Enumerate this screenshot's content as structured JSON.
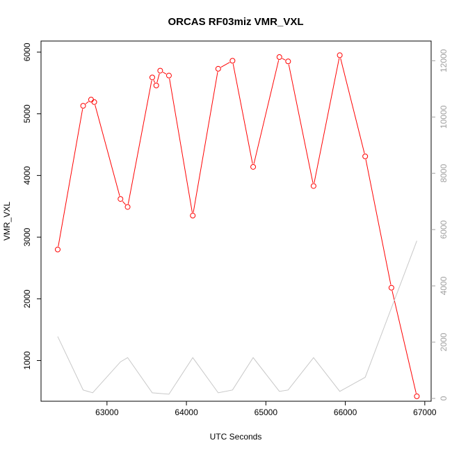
{
  "chart_data": {
    "type": "line",
    "title": "ORCAS RF03miz VMR_VXL",
    "xlabel": "UTC Seconds",
    "ylabel": "VMR_VXL",
    "xlim": [
      62170,
      67080
    ],
    "ylim": [
      340,
      6180
    ],
    "y2lim": [
      -100,
      12700
    ],
    "x_ticks": [
      63000,
      64000,
      65000,
      66000,
      67000
    ],
    "y_ticks": [
      1000,
      2000,
      3000,
      4000,
      5000,
      6000
    ],
    "y2_ticks": [
      0,
      2000,
      4000,
      6000,
      8000,
      10000,
      12000
    ],
    "series": [
      {
        "role": "primary",
        "color": "#ff0000",
        "markers": "open-circle",
        "x": [
          62380,
          62700,
          62800,
          62840,
          63170,
          63260,
          63570,
          63620,
          63670,
          63780,
          64080,
          64400,
          64580,
          64840,
          65170,
          65280,
          65600,
          65930,
          66250,
          66580,
          66900
        ],
        "y": [
          2800,
          5130,
          5230,
          5190,
          3620,
          3490,
          5590,
          5460,
          5700,
          5620,
          3350,
          5730,
          5860,
          4140,
          5920,
          5850,
          3830,
          5950,
          4310,
          2180,
          420
        ]
      },
      {
        "role": "secondary-axis",
        "color": "#c8c8c8",
        "markers": "none",
        "x": [
          62380,
          62700,
          62820,
          63170,
          63260,
          63570,
          63780,
          64080,
          64400,
          64580,
          64840,
          65170,
          65280,
          65600,
          65930,
          66250,
          66900
        ],
        "y": [
          2200,
          300,
          200,
          1300,
          1450,
          200,
          150,
          1450,
          200,
          300,
          1450,
          250,
          300,
          1450,
          250,
          750,
          5600
        ]
      }
    ]
  }
}
